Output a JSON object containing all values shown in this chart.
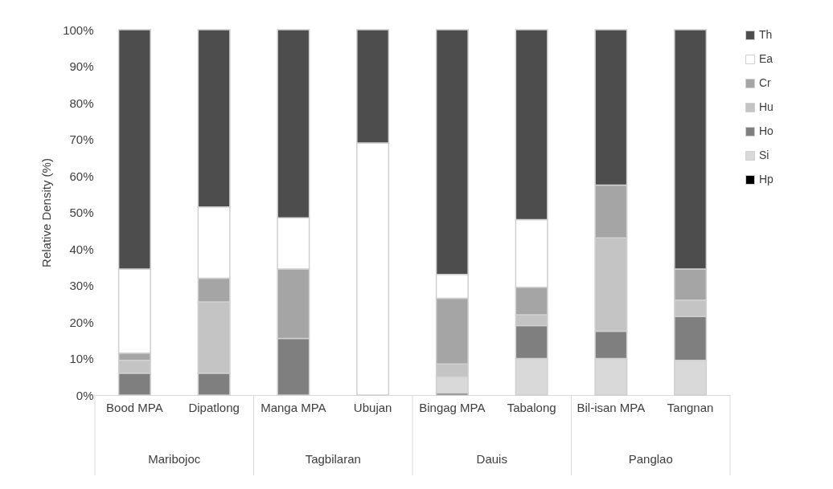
{
  "chart_data": {
    "type": "bar",
    "stacked": true,
    "ylabel": "Relative Density (%)",
    "categories": [
      "Bood MPA",
      "Dipatlong",
      "Manga MPA",
      "Ubujan",
      "Bingag MPA",
      "Tabalong",
      "Bil-isan MPA",
      "Tangnan"
    ],
    "series": [
      {
        "name": "Hp",
        "color": "#000000",
        "values": [
          null,
          null,
          null,
          null,
          0.5,
          null,
          null,
          null
        ]
      },
      {
        "name": "Si",
        "color": "#d9d9d9",
        "values": [
          null,
          null,
          null,
          null,
          4.5,
          10,
          10,
          9.5
        ]
      },
      {
        "name": "Ho",
        "color": "#7f7f7f",
        "values": [
          6,
          6,
          15.5,
          null,
          null,
          9,
          7.5,
          12
        ]
      },
      {
        "name": "Hu",
        "color": "#c4c4c4",
        "values": [
          3.5,
          19.5,
          null,
          null,
          3.5,
          3,
          25.5,
          4.5
        ]
      },
      {
        "name": "Cr",
        "color": "#a5a5a5",
        "values": [
          2,
          6.5,
          19,
          null,
          18,
          7.5,
          14.5,
          8.5
        ]
      },
      {
        "name": "Ea",
        "color": "#ffffff",
        "values": [
          23,
          19.5,
          14,
          69,
          6.5,
          18.5,
          null,
          null
        ]
      },
      {
        "name": "Th",
        "color": "#4d4d4d",
        "values": [
          65.5,
          48.5,
          51.5,
          31,
          67,
          52,
          42.5,
          65.5
        ]
      }
    ],
    "ylim": [
      0,
      100
    ],
    "yticks": [
      {
        "value": 0,
        "label": "0%"
      },
      {
        "value": 10,
        "label": "10%"
      },
      {
        "value": 20,
        "label": "20%"
      },
      {
        "value": 30,
        "label": "30%"
      },
      {
        "value": 40,
        "label": "40%"
      },
      {
        "value": 50,
        "label": "50%"
      },
      {
        "value": 60,
        "label": "60%"
      },
      {
        "value": 70,
        "label": "70%"
      },
      {
        "value": 80,
        "label": "80%"
      },
      {
        "value": 90,
        "label": "90%"
      },
      {
        "value": 100,
        "label": "100%"
      }
    ],
    "grid": false,
    "legend": "right",
    "annotations": [
      "Maribojoc",
      "Tagbilaran",
      "Dauis",
      "Panglao"
    ]
  }
}
